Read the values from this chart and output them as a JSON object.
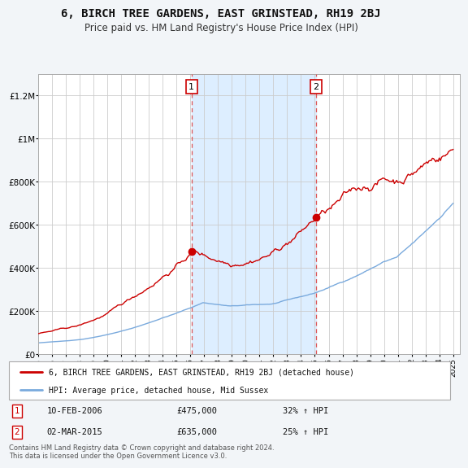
{
  "title": "6, BIRCH TREE GARDENS, EAST GRINSTEAD, RH19 2BJ",
  "subtitle": "Price paid vs. HM Land Registry's House Price Index (HPI)",
  "ylim": [
    0,
    1300000
  ],
  "yticks": [
    0,
    200000,
    400000,
    600000,
    800000,
    1000000,
    1200000
  ],
  "ytick_labels": [
    "£0",
    "£200K",
    "£400K",
    "£600K",
    "£800K",
    "£1M",
    "£1.2M"
  ],
  "line1_color": "#cc0000",
  "line2_color": "#7aaadd",
  "shading_color": "#ddeeff",
  "idx1": 133,
  "idx2": 241,
  "marker1_value": 475000,
  "marker1_date": "10-FEB-2006",
  "marker1_pct": "32% ↑ HPI",
  "marker2_value": 635000,
  "marker2_date": "02-MAR-2015",
  "marker2_pct": "25% ↑ HPI",
  "legend_line1": "6, BIRCH TREE GARDENS, EAST GRINSTEAD, RH19 2BJ (detached house)",
  "legend_line2": "HPI: Average price, detached house, Mid Sussex",
  "footer": "Contains HM Land Registry data © Crown copyright and database right 2024.\nThis data is licensed under the Open Government Licence v3.0.",
  "background_color": "#f2f5f8",
  "plot_bg_color": "#ffffff",
  "n_months": 361,
  "start_year": 1995
}
